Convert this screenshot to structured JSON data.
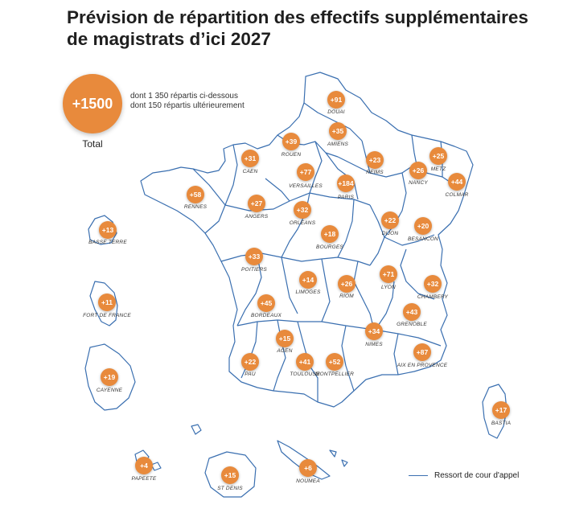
{
  "title": "Prévision de répartition des effectifs supplémentaires de magistrats d’ici 2027",
  "total": {
    "value": "+1500",
    "label": "Total",
    "note_line1": "dont 1 350 répartis ci-dessous",
    "note_line2": "dont 150 répartis ultérieurement"
  },
  "colors": {
    "bubble": "#e88a3c",
    "border": "#3a6fb0"
  },
  "legend": {
    "label": "Ressort de cour d'appel"
  },
  "regions": [
    {
      "city": "DOUAI",
      "value": "+91"
    },
    {
      "city": "AMIENS",
      "value": "+35"
    },
    {
      "city": "ROUEN",
      "value": "+39"
    },
    {
      "city": "CAEN",
      "value": "+31"
    },
    {
      "city": "REIMS",
      "value": "+23"
    },
    {
      "city": "METZ",
      "value": "+25"
    },
    {
      "city": "NANCY",
      "value": "+26"
    },
    {
      "city": "COLMAR",
      "value": "+44"
    },
    {
      "city": "VERSAILLES",
      "value": "+77"
    },
    {
      "city": "PARIS",
      "value": "+184"
    },
    {
      "city": "RENNES",
      "value": "+58"
    },
    {
      "city": "ANGERS",
      "value": "+27"
    },
    {
      "city": "ORLEANS",
      "value": "+32"
    },
    {
      "city": "DIJON",
      "value": "+22"
    },
    {
      "city": "BESANCON",
      "value": "+20"
    },
    {
      "city": "BOURGES",
      "value": "+18"
    },
    {
      "city": "POITIERS",
      "value": "+33"
    },
    {
      "city": "LIMOGES",
      "value": "+14"
    },
    {
      "city": "RIOM",
      "value": "+26"
    },
    {
      "city": "LYON",
      "value": "+71"
    },
    {
      "city": "CHAMBERY",
      "value": "+32"
    },
    {
      "city": "BORDEAUX",
      "value": "+45"
    },
    {
      "city": "GRENOBLE",
      "value": "+43"
    },
    {
      "city": "AGEN",
      "value": "+15"
    },
    {
      "city": "NIMES",
      "value": "+34"
    },
    {
      "city": "PAU",
      "value": "+22"
    },
    {
      "city": "TOULOUSE",
      "value": "+41"
    },
    {
      "city": "MONTPELLIER",
      "value": "+52"
    },
    {
      "city": "AIX EN PROVENCE",
      "value": "+87"
    },
    {
      "city": "BASTIA",
      "value": "+17"
    },
    {
      "city": "BASSE TERRE",
      "value": "+13"
    },
    {
      "city": "FORT DE FRANCE",
      "value": "+11"
    },
    {
      "city": "CAYENNE",
      "value": "+19"
    },
    {
      "city": "PAPEETE",
      "value": "+4"
    },
    {
      "city": "ST DENIS",
      "value": "+15"
    },
    {
      "city": "NOUMEA",
      "value": "+6"
    }
  ]
}
